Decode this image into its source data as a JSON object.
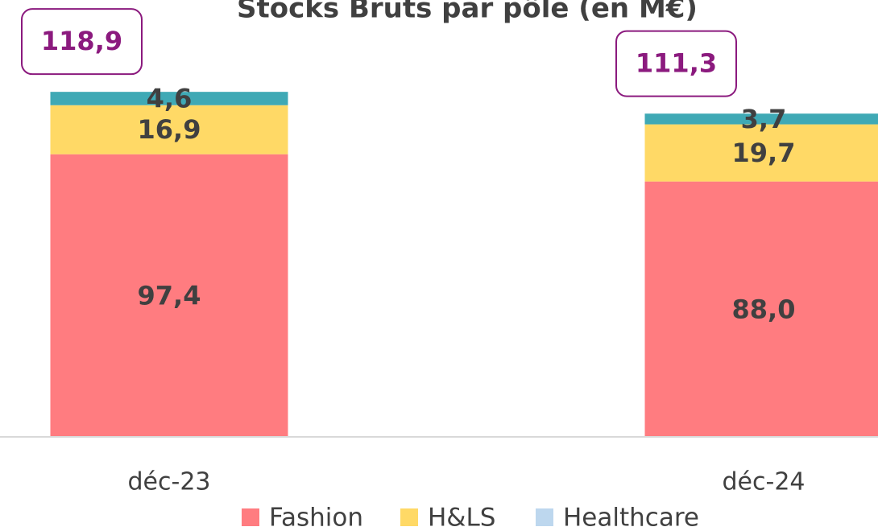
{
  "chart_data": {
    "type": "stacked_bar",
    "title": "Stocks Bruts par pôle (en M€)",
    "categories": [
      "déc-23",
      "déc-24"
    ],
    "series": [
      {
        "name": "Fashion",
        "color": "#ff7c80",
        "values": [
          97.4,
          88.0
        ],
        "value_labels": [
          "97,4",
          "88,0"
        ]
      },
      {
        "name": "H&LS",
        "color": "#ffd966",
        "values": [
          16.9,
          19.7
        ],
        "value_labels": [
          "16,9",
          "19,7"
        ]
      },
      {
        "name": "Healthcare",
        "color": "#3fa9b5",
        "legend_color": "#bdd7ee",
        "values": [
          4.6,
          3.7
        ],
        "value_labels": [
          "4,6",
          "3,7"
        ]
      }
    ],
    "totals": [
      118.9,
      111.3
    ],
    "total_labels": [
      "118,9",
      "111,3"
    ],
    "total_color": "#8b1a7e",
    "ylim": [
      0,
      150
    ]
  }
}
